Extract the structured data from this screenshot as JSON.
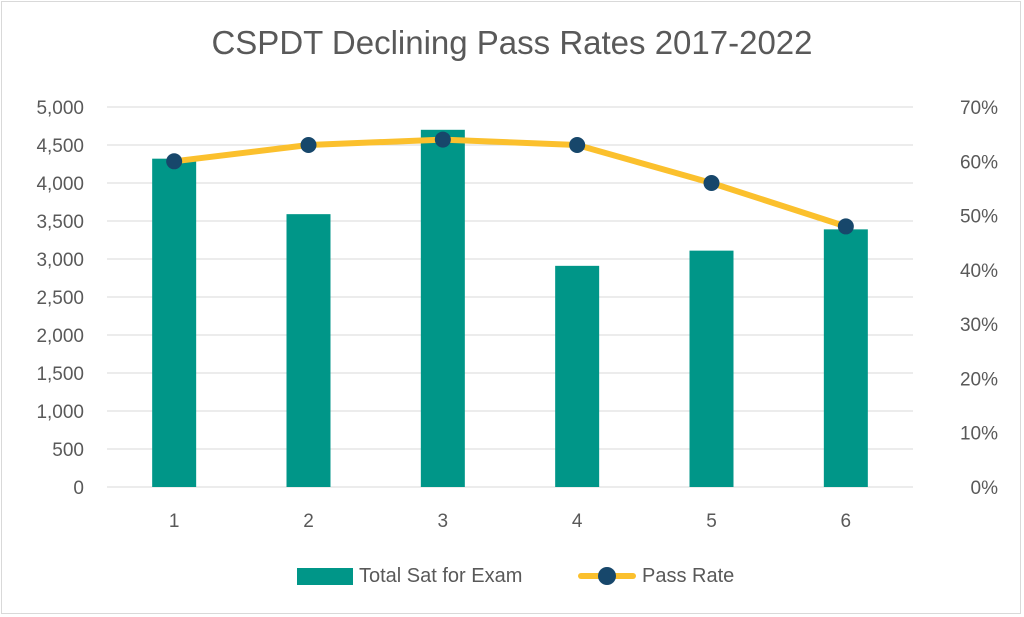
{
  "chart_data": {
    "type": "bar",
    "title": "CSPDT Declining Pass Rates 2017-2022",
    "categories": [
      "1",
      "2",
      "3",
      "4",
      "5",
      "6"
    ],
    "series": [
      {
        "name": "Total Sat for Exam",
        "type": "bar",
        "axis": "left",
        "color": "#009688",
        "values": [
          4320,
          3590,
          4700,
          2910,
          3110,
          3390
        ]
      },
      {
        "name": "Pass Rate",
        "type": "line",
        "axis": "right",
        "color": "#fbc02d",
        "marker_color": "#17476b",
        "values": [
          0.6,
          0.63,
          0.64,
          0.63,
          0.56,
          0.48
        ]
      }
    ],
    "y_left": {
      "min": 0,
      "max": 5000,
      "step": 500,
      "ticks": [
        "0",
        "500",
        "1,000",
        "1,500",
        "2,000",
        "2,500",
        "3,000",
        "3,500",
        "4,000",
        "4,500",
        "5,000"
      ]
    },
    "y_right": {
      "min": 0,
      "max": 0.7,
      "step": 0.1,
      "ticks": [
        "0%",
        "10%",
        "20%",
        "30%",
        "40%",
        "50%",
        "60%",
        "70%"
      ]
    },
    "grid": true,
    "legend_position": "bottom"
  }
}
